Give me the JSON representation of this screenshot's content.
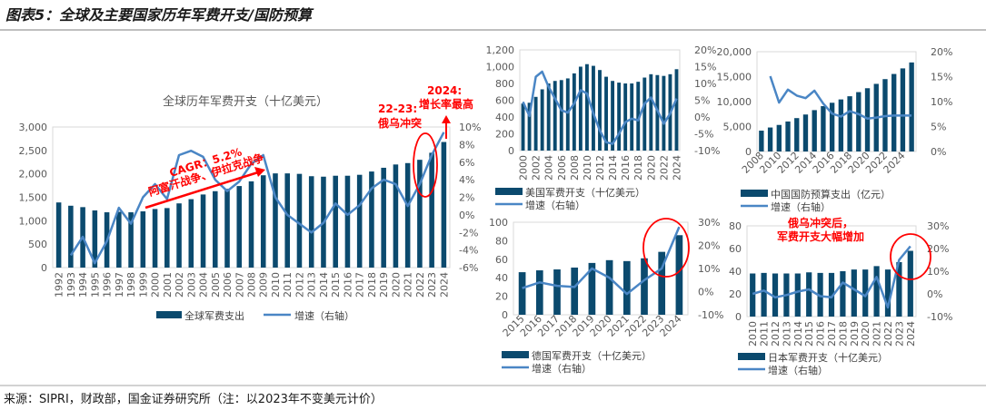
{
  "figure_title": "图表5：全球及主要国家历年军费开支/国防预算",
  "source": "来源：SIPRI，财政部，国金证券研究所（注：以2023年不变美元计价）",
  "colors": {
    "bar": "#0b4a6e",
    "line": "#4a86c5",
    "annotation": "#ff0000"
  },
  "annotations": {
    "cagr": "CAGR：5.2%",
    "wars": "阿富汗战争、伊拉克战争",
    "conflict_year": "22-23:",
    "conflict": "俄乌冲突",
    "peak_year": "2024:",
    "peak": "增长率最高",
    "japan_1": "俄乌冲突后，",
    "japan_2": "军费开支大幅增加"
  },
  "chart_data": [
    {
      "id": "global",
      "type": "bar+line",
      "title": "全球历年军费开支（十亿美元）",
      "categories": [
        "1992",
        "1993",
        "1994",
        "1995",
        "1996",
        "1997",
        "1998",
        "1999",
        "2000",
        "2001",
        "2002",
        "2003",
        "2004",
        "2005",
        "2006",
        "2007",
        "2008",
        "2009",
        "2010",
        "2011",
        "2012",
        "2013",
        "2014",
        "2015",
        "2016",
        "2017",
        "2018",
        "2019",
        "2020",
        "2021",
        "2022",
        "2023",
        "2024"
      ],
      "bar_series": {
        "name": "全球军费支出",
        "values": [
          1390,
          1320,
          1290,
          1220,
          1180,
          1190,
          1180,
          1200,
          1250,
          1270,
          1370,
          1460,
          1560,
          1630,
          1680,
          1740,
          1840,
          1970,
          2010,
          2010,
          2000,
          1950,
          1940,
          1960,
          1960,
          1980,
          2050,
          2130,
          2200,
          2230,
          2300,
          2450,
          2680
        ]
      },
      "line_series": {
        "name": "增速（右轴）",
        "values": [
          null,
          -4.6,
          -2.5,
          -5.5,
          -3.0,
          0.8,
          -1.0,
          2.0,
          3.5,
          1.8,
          6.8,
          7.3,
          6.6,
          4.0,
          2.7,
          3.8,
          5.8,
          6.8,
          2.0,
          0.0,
          -1.0,
          -2.0,
          -0.9,
          1.3,
          0.0,
          1.1,
          3.0,
          4.0,
          3.5,
          1.0,
          3.5,
          6.8,
          9.4
        ]
      },
      "ylim_left": [
        0,
        3000
      ],
      "ylim_right": [
        -6,
        10
      ],
      "yticks_left": [
        "0",
        "500",
        "1,000",
        "1,500",
        "2,000",
        "2,500",
        "3,000"
      ],
      "yticks_right": [
        "-6%",
        "-4%",
        "-2%",
        "0%",
        "2%",
        "4%",
        "6%",
        "8%",
        "10%"
      ],
      "xtick_labels": [
        "1992",
        "1993",
        "1994",
        "1995",
        "1996",
        "1997",
        "1998",
        "1999",
        "2000",
        "2001",
        "2002",
        "2003",
        "2004",
        "2005",
        "2006",
        "2007",
        "2008",
        "2009",
        "2010",
        "2011",
        "2012",
        "2013",
        "2014",
        "2015",
        "2016",
        "2017",
        "2018",
        "2019",
        "2020",
        "2021",
        "2022",
        "2023",
        "2024"
      ],
      "legend": "bottom"
    },
    {
      "id": "us",
      "type": "bar+line",
      "categories": [
        "2000",
        "2001",
        "2002",
        "2003",
        "2004",
        "2005",
        "2006",
        "2007",
        "2008",
        "2009",
        "2010",
        "2011",
        "2012",
        "2013",
        "2014",
        "2015",
        "2016",
        "2017",
        "2018",
        "2019",
        "2020",
        "2021",
        "2022",
        "2023",
        "2024"
      ],
      "bar_series": {
        "name": "美国军费开支（十亿美元）",
        "values": [
          560,
          570,
          640,
          730,
          800,
          830,
          840,
          860,
          920,
          1000,
          1030,
          1010,
          960,
          880,
          830,
          810,
          800,
          800,
          820,
          870,
          910,
          900,
          890,
          910,
          970
        ]
      },
      "line_series": {
        "name": "增速（右轴）",
        "values": [
          4.5,
          0.3,
          12,
          13.5,
          9,
          5.5,
          2,
          1.3,
          4,
          8,
          7,
          1,
          -4,
          -7.5,
          -8,
          -5,
          -1.5,
          -0.5,
          -1,
          4,
          5.8,
          2,
          -2,
          1,
          5.5
        ]
      },
      "ylim_left": [
        0,
        1200
      ],
      "ylim_right": [
        -10,
        20
      ],
      "yticks_left": [
        "0",
        "200",
        "400",
        "600",
        "800",
        "1,000",
        "1,200"
      ],
      "yticks_right": [
        "-10%",
        "-5%",
        "0%",
        "5%",
        "10%",
        "15%",
        "20%"
      ],
      "xtick_labels": [
        "2000",
        "",
        "2002",
        "",
        "2004",
        "",
        "2006",
        "",
        "2008",
        "",
        "2010",
        "",
        "2012",
        "",
        "2014",
        "",
        "2016",
        "",
        "2018",
        "",
        "2020",
        "",
        "2022",
        "",
        "2024"
      ],
      "legend": "bottom-left"
    },
    {
      "id": "china",
      "type": "bar+line",
      "categories": [
        "2008",
        "2009",
        "2010",
        "2011",
        "2012",
        "2013",
        "2014",
        "2015",
        "2016",
        "2017",
        "2018",
        "2019",
        "2020",
        "2021",
        "2022",
        "2023",
        "2024",
        "2025"
      ],
      "bar_series": {
        "name": "中国国防预算支出（亿元）",
        "values": [
          4178,
          4807,
          5321,
          6011,
          6691,
          7411,
          8290,
          9088,
          9766,
          10432,
          11070,
          11899,
          12680,
          13553,
          14505,
          15537,
          16655,
          17847
        ]
      },
      "line_series": {
        "name": "增速（右轴）",
        "values": [
          null,
          15.1,
          9.8,
          12.4,
          11.2,
          10.7,
          12.2,
          9.6,
          7.6,
          7.0,
          8.1,
          7.5,
          6.6,
          6.8,
          7.1,
          7.2,
          7.2,
          7.2
        ]
      },
      "ylim_left": [
        0,
        20000
      ],
      "ylim_right": [
        0,
        20
      ],
      "yticks_left": [
        "0",
        "5,000",
        "10,000",
        "15,000",
        "20,000"
      ],
      "yticks_right": [
        "0%",
        "5%",
        "10%",
        "15%",
        "20%"
      ],
      "xtick_labels": [
        "2008",
        "",
        "2010",
        "",
        "2012",
        "",
        "2014",
        "",
        "2016",
        "",
        "2018",
        "",
        "2020",
        "",
        "2022",
        "",
        "2024",
        ""
      ],
      "legend": "bottom-left"
    },
    {
      "id": "germany",
      "type": "bar+line",
      "categories": [
        "2015",
        "2016",
        "2017",
        "2018",
        "2019",
        "2020",
        "2021",
        "2022",
        "2023",
        "2024"
      ],
      "bar_series": {
        "name": "德国军费开支（十亿美元）",
        "values": [
          46,
          48,
          49,
          51,
          56,
          59,
          58,
          61,
          68,
          86
        ]
      },
      "line_series": {
        "name": "增速（右轴）",
        "values": [
          1.5,
          4,
          2.5,
          2,
          10,
          6,
          -1,
          5,
          10,
          28
        ]
      },
      "ylim_left": [
        0,
        100
      ],
      "ylim_right": [
        -10,
        30
      ],
      "yticks_left": [
        "0",
        "20",
        "40",
        "60",
        "80",
        "100"
      ],
      "yticks_right": [
        "-10%",
        "0%",
        "10%",
        "20%",
        "30%"
      ],
      "xtick_labels": [
        "2015",
        "2016",
        "2017",
        "2018",
        "2019",
        "2020",
        "2021",
        "2022",
        "2023",
        "2024"
      ],
      "legend": "bottom-left"
    },
    {
      "id": "japan",
      "type": "bar+line",
      "categories": [
        "2010",
        "2011",
        "2012",
        "2013",
        "2014",
        "2015",
        "2016",
        "2017",
        "2018",
        "2019",
        "2020",
        "2021",
        "2022",
        "2023",
        "2024"
      ],
      "bar_series": {
        "name": "日本军费开支（十亿美元）",
        "values": [
          38,
          38.5,
          38,
          38,
          38,
          39,
          38.5,
          38.5,
          40,
          41.5,
          41.5,
          44.5,
          41.5,
          48,
          58
        ]
      },
      "line_series": {
        "name": "增速（右轴）",
        "values": [
          0,
          1.5,
          -1.5,
          -0.5,
          1,
          2,
          -1,
          -1.5,
          5,
          2,
          -1,
          7.5,
          -6,
          15,
          21
        ]
      },
      "ylim_left": [
        0,
        80
      ],
      "ylim_right": [
        -10,
        30
      ],
      "yticks_left": [
        "0",
        "20",
        "40",
        "60",
        "80"
      ],
      "yticks_right": [
        "-10%",
        "0%",
        "10%",
        "20%",
        "30%"
      ],
      "xtick_labels": [
        "2010",
        "2011",
        "2012",
        "2013",
        "2014",
        "2015",
        "2016",
        "2017",
        "2018",
        "2019",
        "2020",
        "2021",
        "2022",
        "2023",
        "2024"
      ],
      "legend": "bottom-left"
    }
  ]
}
